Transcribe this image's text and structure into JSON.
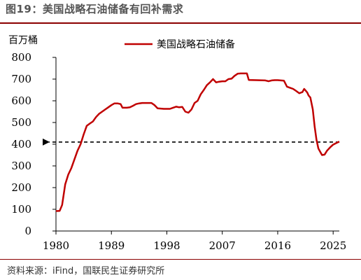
{
  "figure_title": "图19：美国战略石油储备有回补需求",
  "source_note": "资料来源：iFind，国联民生证券研究所",
  "colors": {
    "series": "#c00000",
    "reference": "#000000",
    "title_rule": "#8b0000"
  },
  "chart_data": {
    "type": "line",
    "unit_label": "百万桶",
    "xlabel": "",
    "ylabel": "",
    "xlim": [
      1980,
      2026
    ],
    "ylim": [
      0,
      800
    ],
    "xticks": [
      1980,
      1989,
      1998,
      2007,
      2016,
      2025
    ],
    "yticks": [
      0,
      100,
      200,
      300,
      400,
      500,
      600,
      700,
      800
    ],
    "legend_position": "top",
    "grid": false,
    "series": [
      {
        "name": "美国战略石油储备",
        "points": [
          [
            1980.0,
            92
          ],
          [
            1980.6,
            93
          ],
          [
            1981.0,
            120
          ],
          [
            1981.5,
            215
          ],
          [
            1982.0,
            260
          ],
          [
            1982.5,
            290
          ],
          [
            1983.0,
            330
          ],
          [
            1983.5,
            370
          ],
          [
            1984.0,
            400
          ],
          [
            1984.5,
            445
          ],
          [
            1985.0,
            485
          ],
          [
            1985.5,
            495
          ],
          [
            1986.0,
            505
          ],
          [
            1986.5,
            525
          ],
          [
            1987.0,
            540
          ],
          [
            1987.5,
            550
          ],
          [
            1988.0,
            560
          ],
          [
            1988.5,
            570
          ],
          [
            1989.0,
            580
          ],
          [
            1989.5,
            588
          ],
          [
            1990.0,
            588
          ],
          [
            1990.5,
            585
          ],
          [
            1990.8,
            568
          ],
          [
            1991.5,
            568
          ],
          [
            1992.0,
            570
          ],
          [
            1992.5,
            577
          ],
          [
            1993.0,
            585
          ],
          [
            1993.5,
            588
          ],
          [
            1994.0,
            590
          ],
          [
            1995.5,
            590
          ],
          [
            1996.0,
            580
          ],
          [
            1996.5,
            565
          ],
          [
            1997.5,
            563
          ],
          [
            1998.5,
            563
          ],
          [
            1999.0,
            568
          ],
          [
            1999.5,
            573
          ],
          [
            2000.0,
            570
          ],
          [
            2000.5,
            572
          ],
          [
            2001.0,
            550
          ],
          [
            2001.5,
            545
          ],
          [
            2002.0,
            560
          ],
          [
            2002.5,
            590
          ],
          [
            2003.0,
            600
          ],
          [
            2003.5,
            630
          ],
          [
            2004.0,
            650
          ],
          [
            2004.5,
            672
          ],
          [
            2005.0,
            685
          ],
          [
            2005.5,
            700
          ],
          [
            2006.0,
            685
          ],
          [
            2006.5,
            688
          ],
          [
            2007.0,
            690
          ],
          [
            2007.5,
            690
          ],
          [
            2008.0,
            700
          ],
          [
            2008.5,
            702
          ],
          [
            2009.0,
            715
          ],
          [
            2009.5,
            725
          ],
          [
            2010.0,
            726
          ],
          [
            2011.0,
            726
          ],
          [
            2011.3,
            696
          ],
          [
            2012.5,
            695
          ],
          [
            2014.0,
            694
          ],
          [
            2014.5,
            690
          ],
          [
            2015.0,
            694
          ],
          [
            2015.5,
            695
          ],
          [
            2016.0,
            695
          ],
          [
            2017.0,
            693
          ],
          [
            2017.5,
            665
          ],
          [
            2018.0,
            660
          ],
          [
            2018.5,
            655
          ],
          [
            2019.0,
            645
          ],
          [
            2019.5,
            635
          ],
          [
            2020.0,
            640
          ],
          [
            2020.3,
            655
          ],
          [
            2020.8,
            638
          ],
          [
            2021.0,
            625
          ],
          [
            2021.3,
            615
          ],
          [
            2021.7,
            560
          ],
          [
            2022.0,
            480
          ],
          [
            2022.3,
            420
          ],
          [
            2022.6,
            380
          ],
          [
            2022.9,
            365
          ],
          [
            2023.2,
            350
          ],
          [
            2023.6,
            352
          ],
          [
            2024.0,
            370
          ],
          [
            2024.5,
            385
          ],
          [
            2025.0,
            398
          ],
          [
            2025.5,
            405
          ],
          [
            2026.0,
            412
          ]
        ]
      },
      {
        "name": "",
        "style": "dashed-arrow",
        "points": [
          [
            1980.0,
            410
          ],
          [
            2026.0,
            410
          ]
        ]
      }
    ]
  }
}
